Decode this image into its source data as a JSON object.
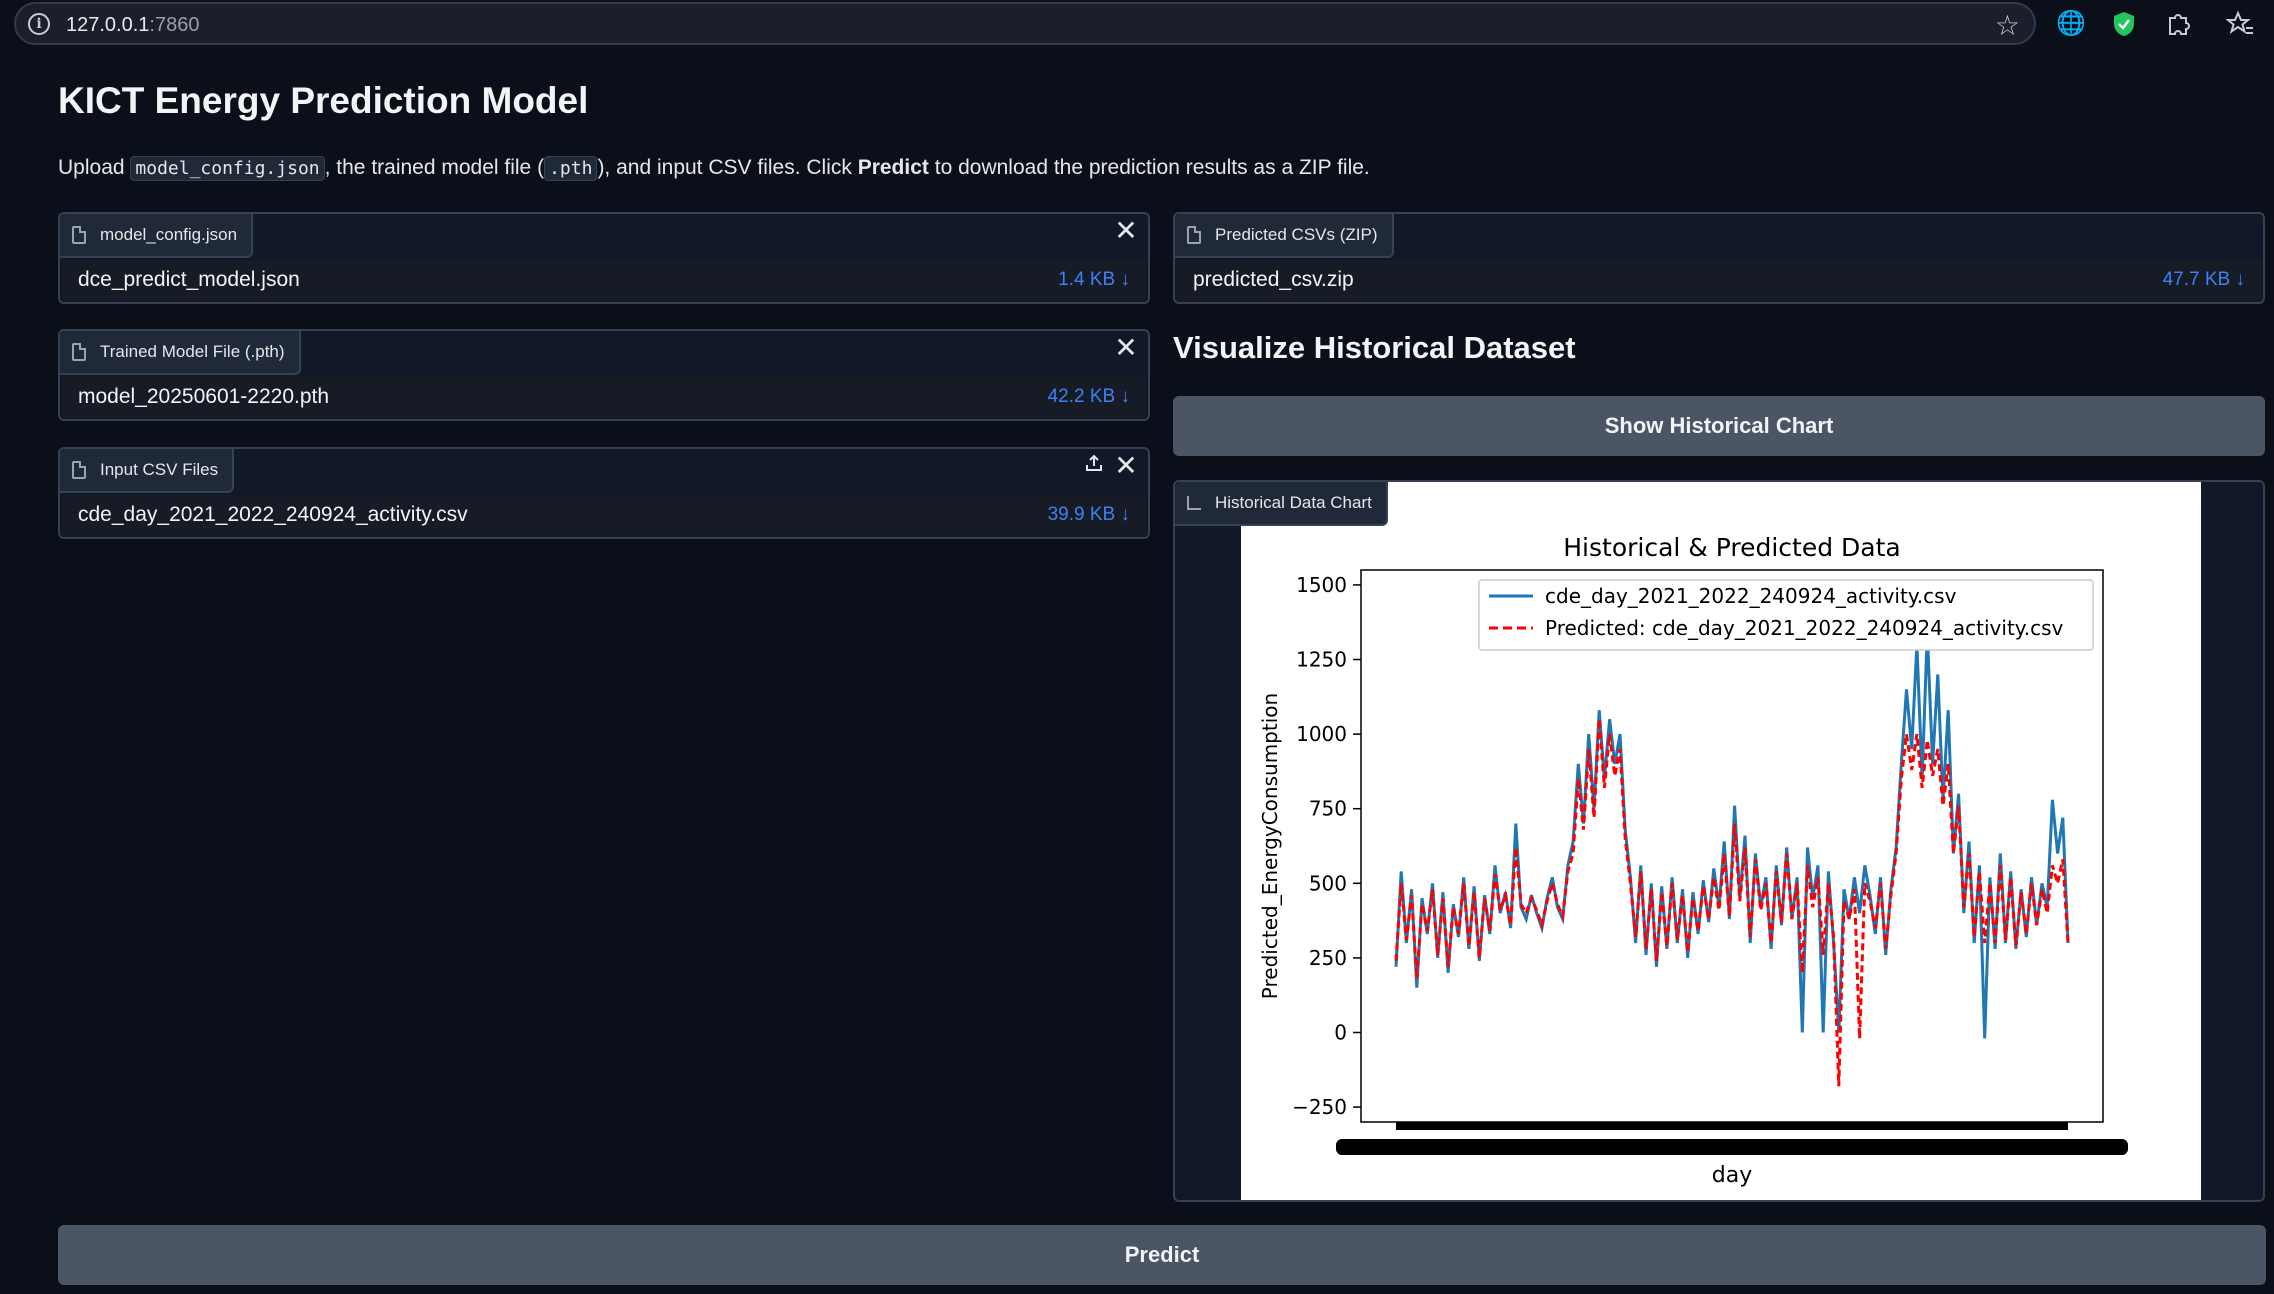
{
  "browser": {
    "url_host": "127.0.0.1",
    "url_port": ":7860",
    "icons": [
      "info-icon",
      "star-icon",
      "globe-icon",
      "shield-icon",
      "puzzle-icon",
      "favorites-icon"
    ]
  },
  "page": {
    "title": "KICT Energy Prediction Model",
    "description": {
      "p1": "Upload ",
      "code1": "model_config.json",
      "p2": ", the trained model file (",
      "code2": ".pth",
      "p3": "), and input CSV files. Click ",
      "bold": "Predict",
      "p4": " to download the prediction results as a ZIP file."
    }
  },
  "uploads": [
    {
      "label": "model_config.json",
      "file": "dce_predict_model.json",
      "size": "1.4 KB ↓"
    },
    {
      "label": "Trained Model File (.pth)",
      "file": "model_20250601-2220.pth",
      "size": "42.2 KB ↓"
    },
    {
      "label": "Input CSV Files",
      "file": "cde_day_2021_2022_240924_activity.csv",
      "size": "39.9 KB ↓"
    }
  ],
  "output": {
    "label": "Predicted CSVs (ZIP)",
    "file": "predicted_csv.zip",
    "size": "47.7 KB ↓"
  },
  "visualize": {
    "title": "Visualize Historical Dataset",
    "button": "Show Historical Chart",
    "chart_label": "Historical Data Chart"
  },
  "predict_button": "Predict",
  "colors": {
    "actual": "#1f77b4",
    "predicted": "#ff0000",
    "link": "#3b82f6",
    "button": "#4b5563"
  },
  "chart_data": {
    "type": "line",
    "title": "Historical & Predicted Data",
    "xlabel": "day",
    "ylabel": "Predicted_EnergyConsumption",
    "ylim": [
      -300,
      1550
    ],
    "yticks": [
      -250,
      0,
      250,
      500,
      750,
      1000,
      1250,
      1500
    ],
    "legend_position": "upper-right",
    "series": [
      {
        "name": "cde_day_2021_2022_240924_activity.csv",
        "style": "solid",
        "values": [
          220,
          540,
          300,
          480,
          150,
          450,
          330,
          500,
          250,
          470,
          200,
          430,
          320,
          520,
          280,
          490,
          240,
          460,
          330,
          560,
          400,
          470,
          350,
          700,
          420,
          380,
          460,
          400,
          350,
          450,
          520,
          420,
          380,
          560,
          640,
          900,
          700,
          1000,
          750,
          1080,
          850,
          1050,
          900,
          1000,
          680,
          520,
          300,
          560,
          260,
          500,
          220,
          490,
          280,
          520,
          300,
          480,
          250,
          470,
          330,
          510,
          370,
          550,
          420,
          640,
          380,
          760,
          450,
          660,
          300,
          600,
          420,
          520,
          280,
          560,
          360,
          620,
          380,
          520,
          0,
          620,
          450,
          560,
          0,
          540,
          300,
          0,
          480,
          380,
          520,
          400,
          560,
          460,
          330,
          520,
          260,
          480,
          620,
          900,
          1150,
          950,
          1300,
          850,
          1340,
          900,
          1200,
          780,
          1080,
          600,
          800,
          400,
          640,
          300,
          560,
          -20,
          520,
          280,
          600,
          300,
          540,
          280,
          480,
          320,
          520,
          360,
          500,
          420,
          780,
          600,
          720,
          300
        ]
      },
      {
        "name": "Predicted: cde_day_2021_2022_240924_activity.csv",
        "style": "dashed",
        "values": [
          240,
          500,
          310,
          460,
          180,
          430,
          340,
          480,
          260,
          450,
          220,
          420,
          330,
          500,
          290,
          470,
          250,
          450,
          340,
          530,
          410,
          460,
          360,
          620,
          430,
          400,
          450,
          410,
          360,
          440,
          500,
          430,
          390,
          540,
          600,
          850,
          680,
          950,
          720,
          1050,
          820,
          1000,
          860,
          950,
          650,
          500,
          320,
          540,
          280,
          480,
          240,
          470,
          290,
          500,
          310,
          460,
          270,
          450,
          340,
          490,
          380,
          520,
          410,
          600,
          390,
          700,
          440,
          620,
          320,
          580,
          410,
          500,
          300,
          540,
          370,
          600,
          380,
          500,
          200,
          560,
          420,
          520,
          260,
          500,
          320,
          -180,
          440,
          380,
          480,
          -20,
          500,
          440,
          350,
          500,
          280,
          460,
          600,
          850,
          1000,
          880,
          1000,
          820,
          980,
          860,
          950,
          760,
          900,
          600,
          760,
          420,
          600,
          320,
          540,
          300,
          500,
          300,
          560,
          310,
          520,
          290,
          470,
          330,
          500,
          360,
          480,
          400,
          560,
          500,
          580,
          300
        ]
      }
    ]
  }
}
